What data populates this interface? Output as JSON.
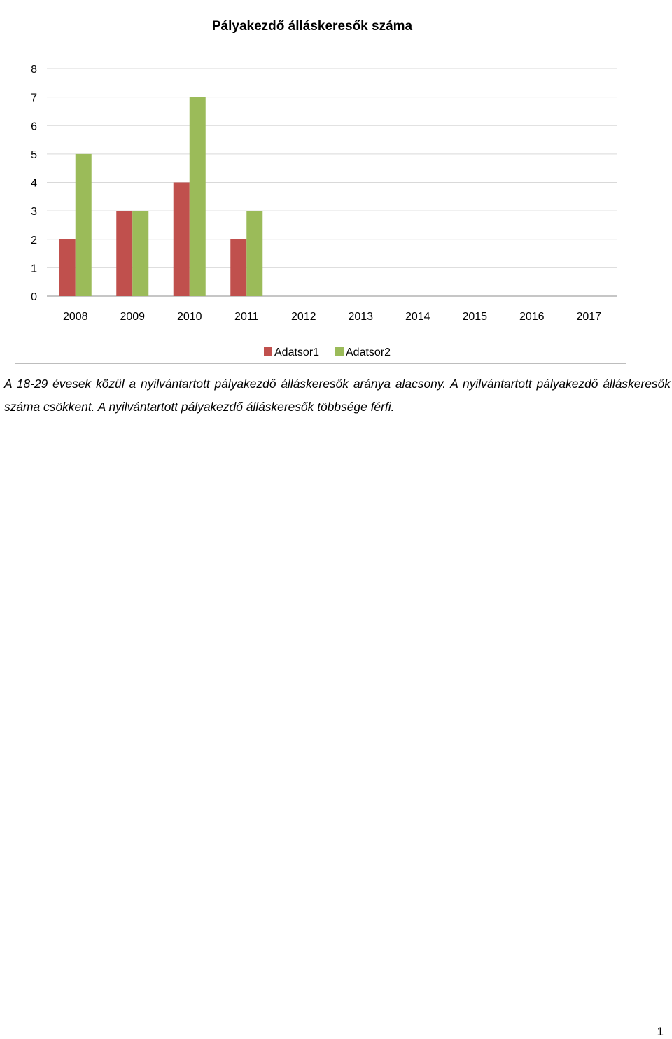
{
  "chart_data": {
    "type": "bar",
    "title": "Pályakezdő álláskeresők száma",
    "categories": [
      "2008",
      "2009",
      "2010",
      "2011",
      "2012",
      "2013",
      "2014",
      "2015",
      "2016",
      "2017"
    ],
    "series": [
      {
        "name": "Adatsor1",
        "color": "#c0504d",
        "values": [
          2,
          3,
          4,
          2,
          null,
          null,
          null,
          null,
          null,
          null
        ]
      },
      {
        "name": "Adatsor2",
        "color": "#9bbb59",
        "values": [
          5,
          3,
          7,
          3,
          null,
          null,
          null,
          null,
          null,
          null
        ]
      }
    ],
    "ylim": [
      0,
      8
    ],
    "yticks": [
      0,
      1,
      2,
      3,
      4,
      5,
      6,
      7,
      8
    ],
    "grid": true,
    "legend": "bottom"
  },
  "paragraph": "A 18-29 évesek közül a nyilvántartott pályakezdő álláskeresők aránya alacsony. A nyilvántartott pályakezdő álláskeresők száma csökkent. A nyilvántartott pályakezdő álláskeresők többsége férfi.",
  "page_number": "1"
}
